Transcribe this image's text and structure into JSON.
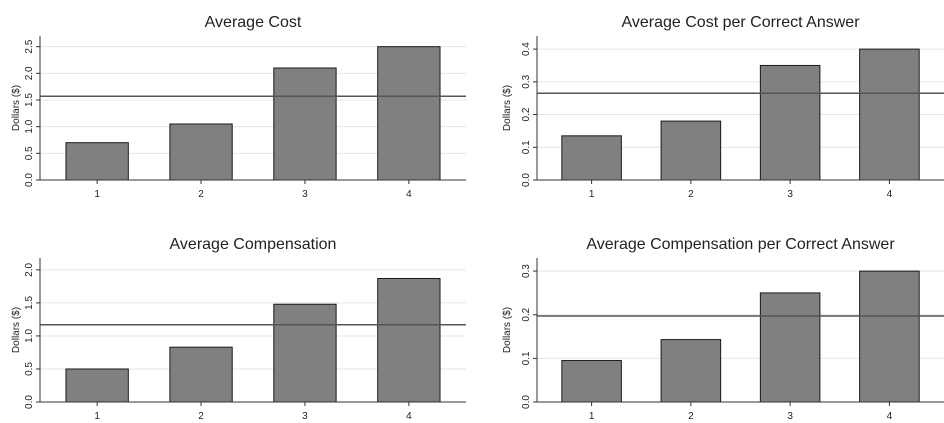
{
  "chart_data": [
    {
      "type": "bar",
      "title": "Average Cost",
      "xlabel": "",
      "ylabel": "Dollars ($)",
      "categories": [
        "1",
        "2",
        "3",
        "4"
      ],
      "values": [
        0.7,
        1.05,
        2.1,
        2.5
      ],
      "reference_line": 1.57,
      "ylim": [
        0,
        2.7
      ],
      "yticks": [
        "0.0",
        "0.5",
        "1.0",
        "1.5",
        "2.0",
        "2.5"
      ],
      "grid": true,
      "bar_color": "#808080",
      "line_color": "#555555"
    },
    {
      "type": "bar",
      "title": "Average Cost per Correct Answer",
      "xlabel": "",
      "ylabel": "Dollars ($)",
      "categories": [
        "1",
        "2",
        "3",
        "4"
      ],
      "values": [
        0.135,
        0.18,
        0.35,
        0.4
      ],
      "reference_line": 0.265,
      "ylim": [
        0,
        0.44
      ],
      "yticks": [
        "0.0",
        "0.1",
        "0.2",
        "0.3",
        "0.4"
      ],
      "grid": true,
      "bar_color": "#808080",
      "line_color": "#555555"
    },
    {
      "type": "bar",
      "title": "Average Compensation",
      "xlabel": "",
      "ylabel": "Dollars ($)",
      "categories": [
        "1",
        "2",
        "3",
        "4"
      ],
      "values": [
        0.5,
        0.83,
        1.48,
        1.87
      ],
      "reference_line": 1.17,
      "ylim": [
        0,
        2.18
      ],
      "yticks": [
        "0.0",
        "0.5",
        "1.0",
        "1.5",
        "2.0"
      ],
      "grid": true,
      "bar_color": "#808080",
      "line_color": "#555555"
    },
    {
      "type": "bar",
      "title": "Average Compensation per Correct Answer",
      "xlabel": "",
      "ylabel": "Dollars ($)",
      "categories": [
        "1",
        "2",
        "3",
        "4"
      ],
      "values": [
        0.095,
        0.143,
        0.25,
        0.3
      ],
      "reference_line": 0.197,
      "ylim": [
        0,
        0.33
      ],
      "yticks": [
        "0.0",
        "0.1",
        "0.2",
        "0.3"
      ],
      "grid": true,
      "bar_color": "#808080",
      "line_color": "#555555"
    }
  ]
}
